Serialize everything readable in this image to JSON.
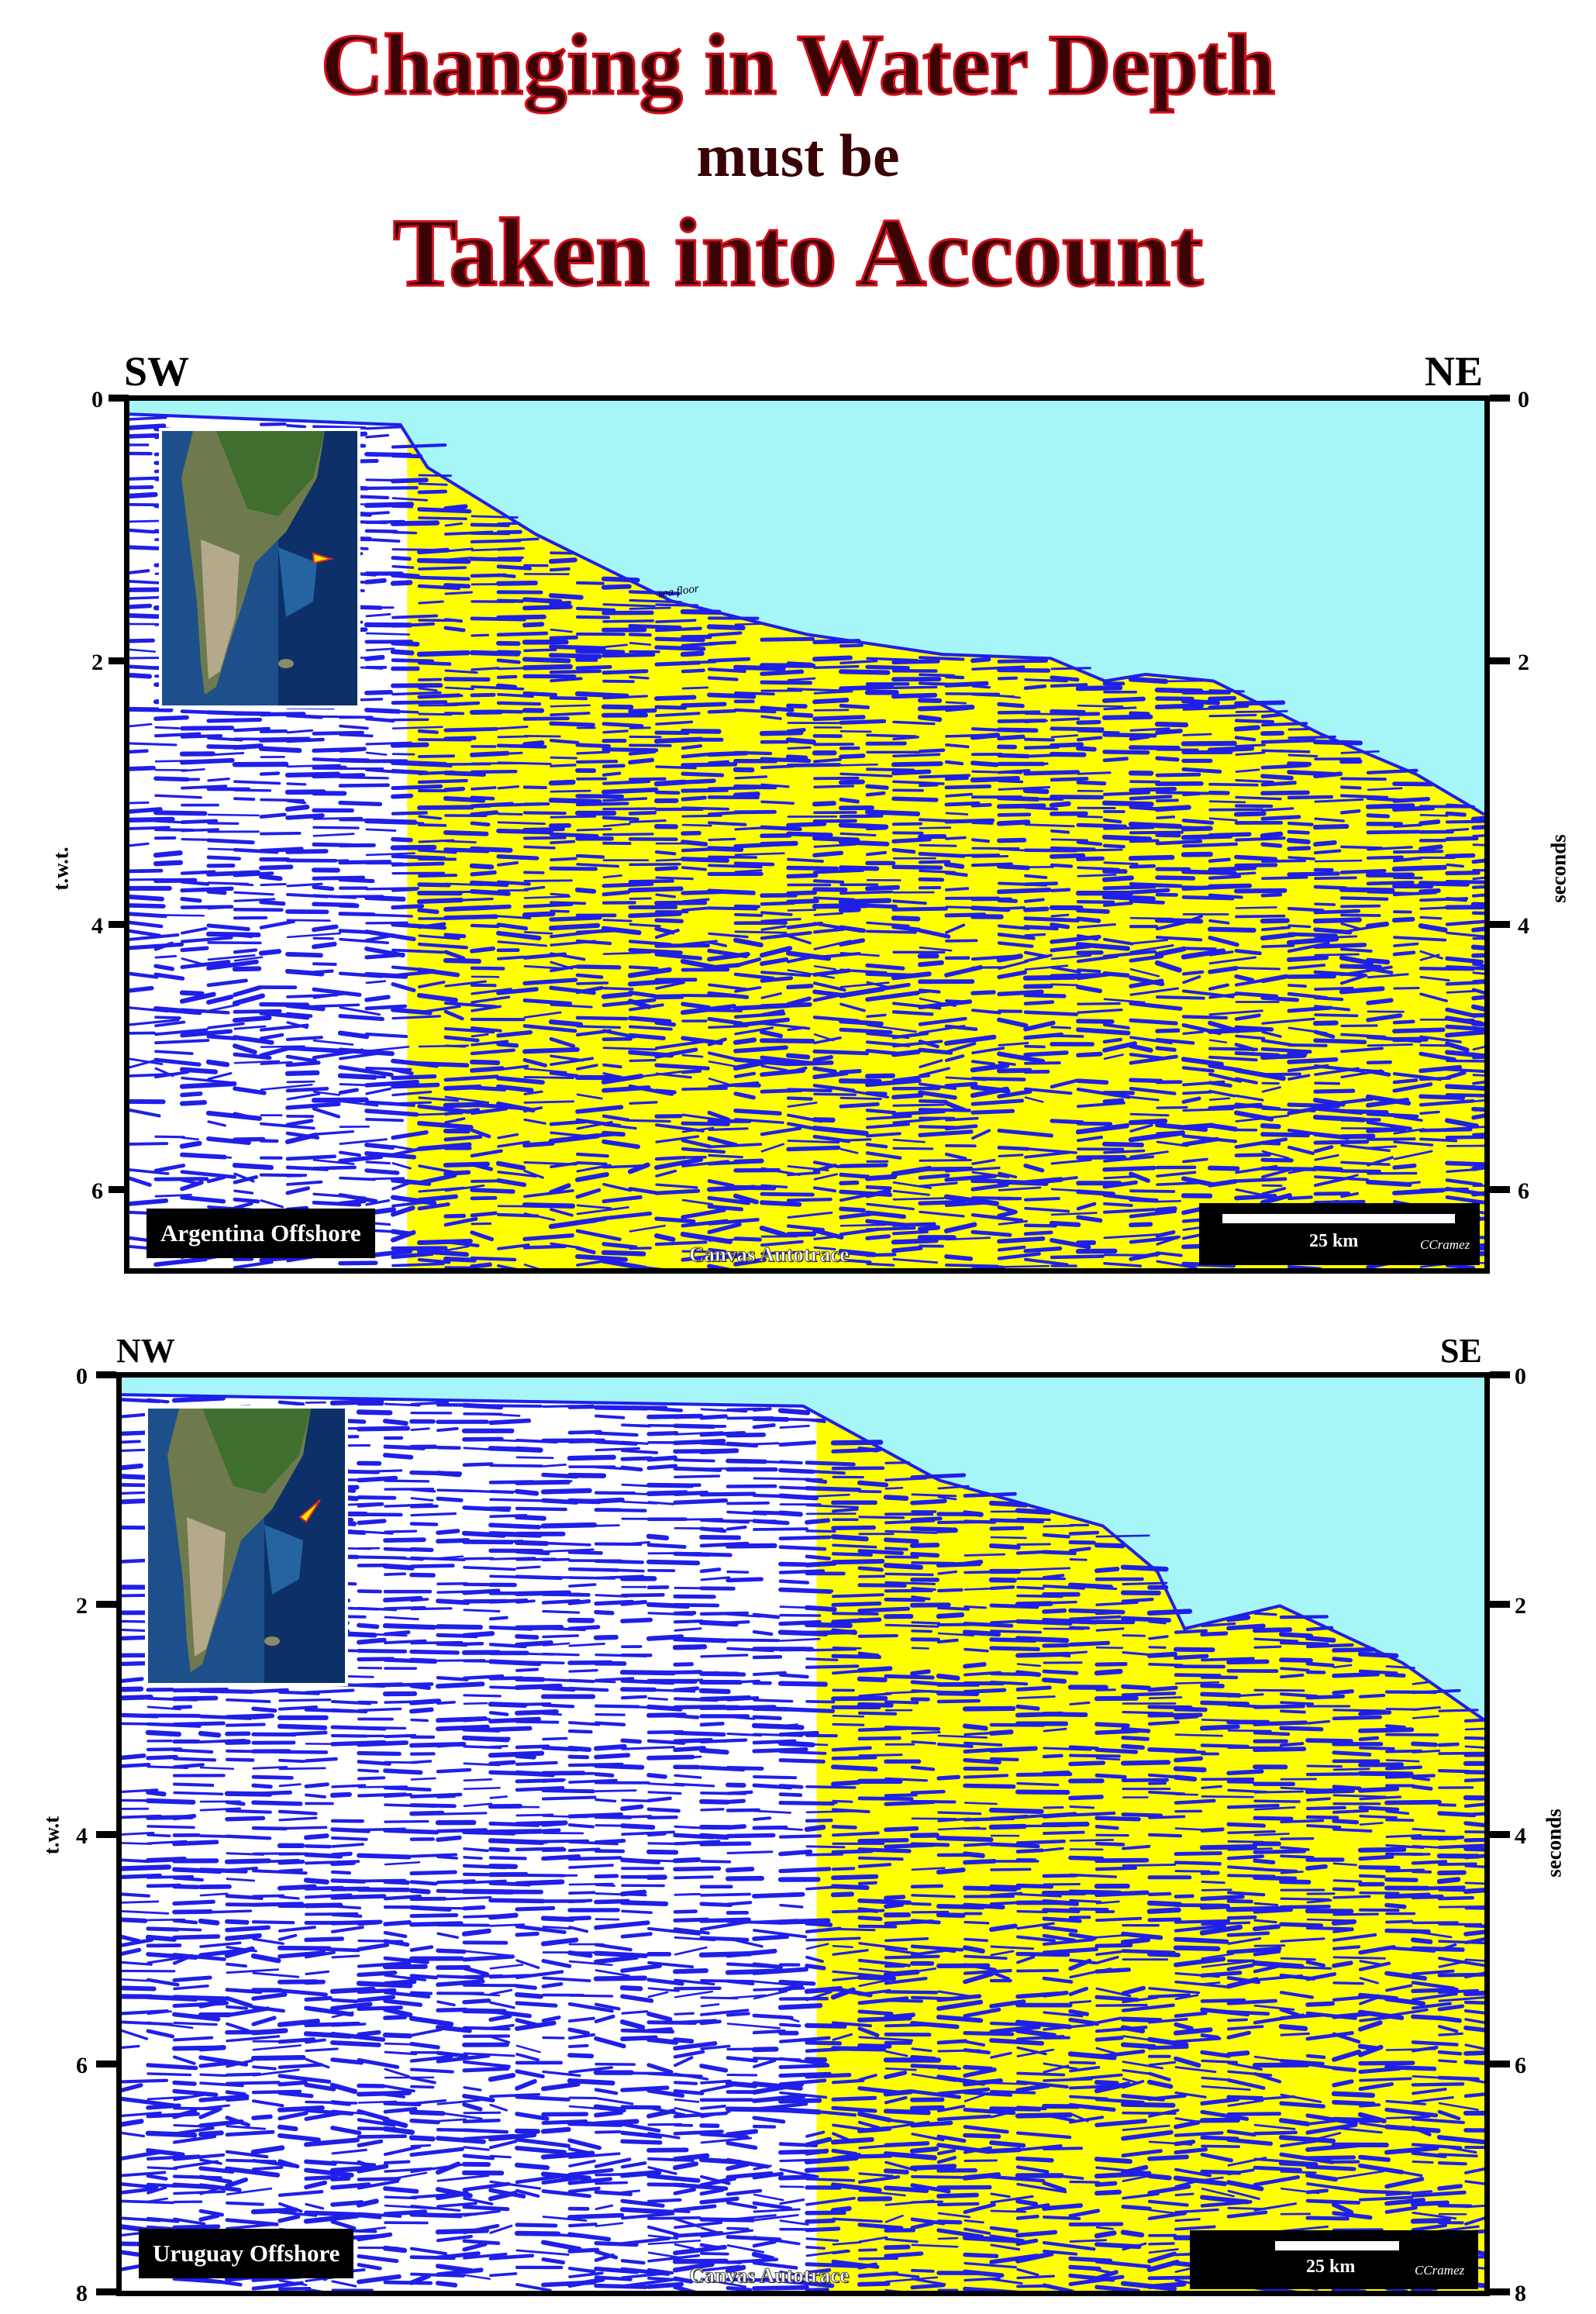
{
  "title": {
    "line1": "Changing in Water Depth",
    "line2": "must be",
    "line3": "Taken into Account"
  },
  "colors": {
    "water": "#a6f6f8",
    "sediment": "#ffff00",
    "reflector": "#1f1fe8",
    "title_fill": "#3a0406",
    "title_outline": "#d4101b"
  },
  "sections": [
    {
      "region_label": "Argentina Offshore",
      "left_direction": "SW",
      "right_direction": "NE",
      "left_axis_label": "t.w.t.",
      "right_axis_label": "seconds",
      "ticks": [
        "0",
        "2",
        "4",
        "6"
      ],
      "tick_values": [
        0,
        2,
        4,
        6
      ],
      "axis_max": 6.5,
      "sea_floor_label": "sea floor",
      "scale_label": "25 km",
      "credit": "CCramez",
      "watermark": "Canvas Autotrace",
      "inset_icon": "south-america-location-map",
      "sea_floor_twt": [
        [
          0,
          0.1
        ],
        [
          0.2,
          0.18
        ],
        [
          0.22,
          0.5
        ],
        [
          0.3,
          1.0
        ],
        [
          0.4,
          1.5
        ],
        [
          0.5,
          1.75
        ],
        [
          0.6,
          1.9
        ],
        [
          0.68,
          1.93
        ],
        [
          0.72,
          2.1
        ],
        [
          0.75,
          2.05
        ],
        [
          0.8,
          2.1
        ],
        [
          0.88,
          2.5
        ],
        [
          0.95,
          2.8
        ],
        [
          1,
          3.1
        ]
      ]
    },
    {
      "region_label": "Uruguay Offshore",
      "left_direction": "NW",
      "right_direction": "SE",
      "left_axis_label": "t.w.t",
      "right_axis_label": "seconds",
      "ticks": [
        "0",
        "2",
        "4",
        "6",
        "8"
      ],
      "tick_values": [
        0,
        2,
        4,
        6,
        8
      ],
      "axis_max": 8,
      "scale_label": "25 km",
      "credit": "CCramez",
      "watermark": "Canvas Autotrace",
      "inset_icon": "south-america-location-map",
      "sea_floor_twt": [
        [
          0,
          0.15
        ],
        [
          0.5,
          0.25
        ],
        [
          0.6,
          0.9
        ],
        [
          0.72,
          1.3
        ],
        [
          0.76,
          1.7
        ],
        [
          0.78,
          2.2
        ],
        [
          0.85,
          2.0
        ],
        [
          0.94,
          2.5
        ],
        [
          1,
          3.0
        ]
      ]
    }
  ]
}
